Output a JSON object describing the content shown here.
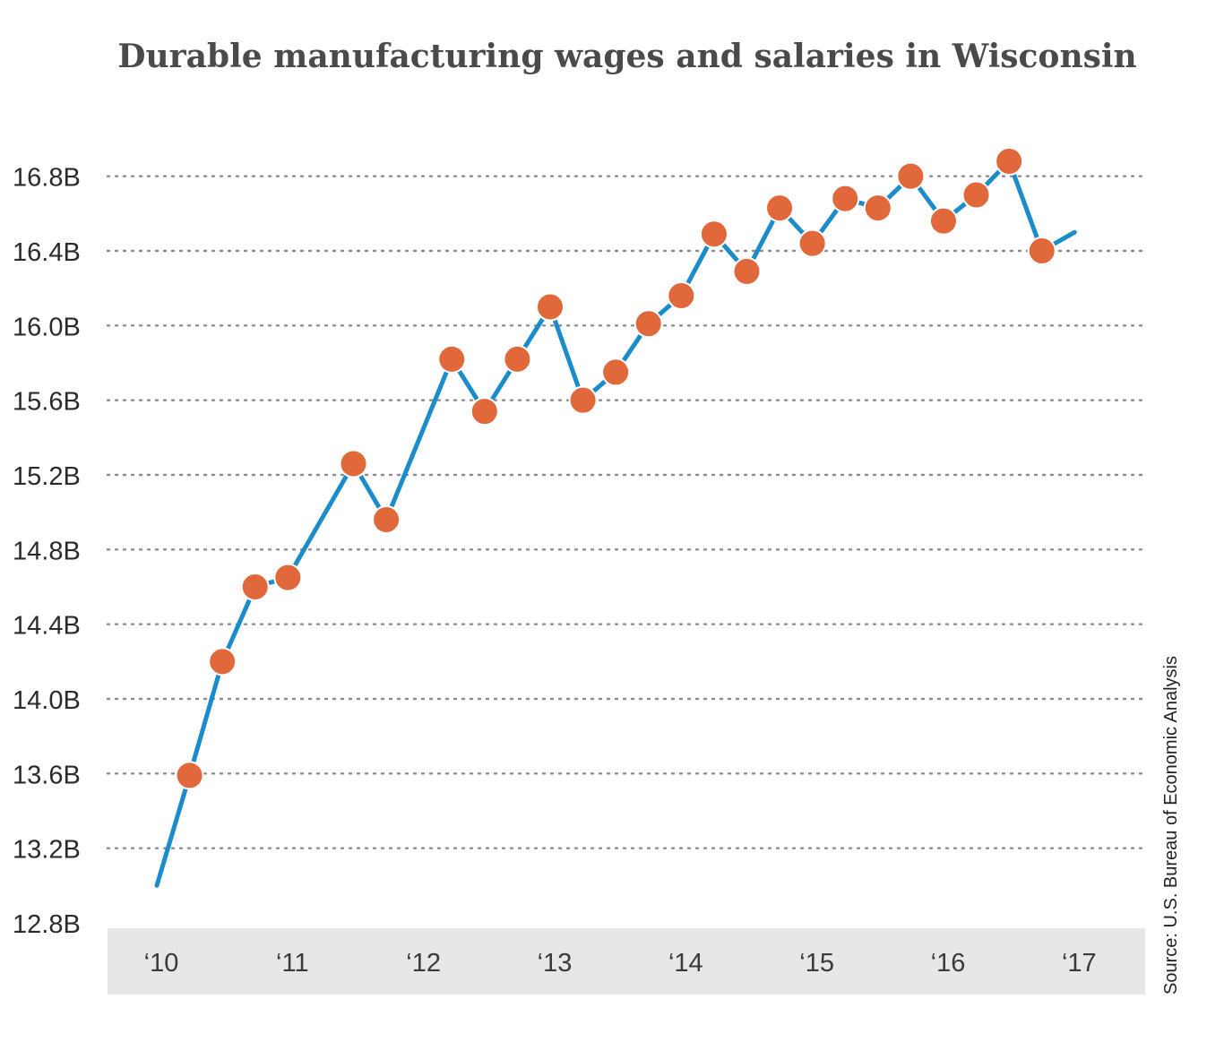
{
  "chart_data": {
    "type": "line",
    "title": "Durable manufacturing wages and salaries in Wisconsin",
    "source": "Source: U.S. Bureau of Economic Analysis",
    "xlabel": "",
    "ylabel": "",
    "ylim": [
      12.8,
      17.0
    ],
    "xlim": [
      2010,
      2017.3
    ],
    "grid": true,
    "y_ticks": [
      {
        "value": 12.8,
        "label": "12.8B"
      },
      {
        "value": 13.2,
        "label": "13.2B"
      },
      {
        "value": 13.6,
        "label": "13.6B"
      },
      {
        "value": 14.0,
        "label": "14.0B"
      },
      {
        "value": 14.4,
        "label": "14.4B"
      },
      {
        "value": 14.8,
        "label": "14.8B"
      },
      {
        "value": 15.2,
        "label": "15.2B"
      },
      {
        "value": 15.6,
        "label": "15.6B"
      },
      {
        "value": 16.0,
        "label": "16.0B"
      },
      {
        "value": 16.4,
        "label": "16.4B"
      },
      {
        "value": 16.8,
        "label": "16.8B"
      }
    ],
    "x_ticks": [
      {
        "value": 2010,
        "label": "‘10"
      },
      {
        "value": 2011,
        "label": "‘11"
      },
      {
        "value": 2012,
        "label": "‘12"
      },
      {
        "value": 2013,
        "label": "‘13"
      },
      {
        "value": 2014,
        "label": "‘14"
      },
      {
        "value": 2015,
        "label": "‘15"
      },
      {
        "value": 2016,
        "label": "‘16"
      },
      {
        "value": 2017,
        "label": "‘17"
      }
    ],
    "series": [
      {
        "line_color": "#1a8cc9",
        "marker_color": "#e0683a",
        "points": [
          {
            "x": 2010.0,
            "y": 13.0,
            "marker": false
          },
          {
            "x": 2010.25,
            "y": 13.59,
            "marker": true
          },
          {
            "x": 2010.5,
            "y": 14.2,
            "marker": true
          },
          {
            "x": 2010.75,
            "y": 14.6,
            "marker": true
          },
          {
            "x": 2011.0,
            "y": 14.65,
            "marker": true
          },
          {
            "x": 2011.5,
            "y": 15.26,
            "marker": true
          },
          {
            "x": 2011.75,
            "y": 14.96,
            "marker": true
          },
          {
            "x": 2012.25,
            "y": 15.82,
            "marker": true
          },
          {
            "x": 2012.5,
            "y": 15.54,
            "marker": true
          },
          {
            "x": 2012.75,
            "y": 15.82,
            "marker": true
          },
          {
            "x": 2013.0,
            "y": 16.1,
            "marker": true
          },
          {
            "x": 2013.25,
            "y": 15.6,
            "marker": true
          },
          {
            "x": 2013.5,
            "y": 15.75,
            "marker": true
          },
          {
            "x": 2013.75,
            "y": 16.01,
            "marker": true
          },
          {
            "x": 2014.0,
            "y": 16.16,
            "marker": true
          },
          {
            "x": 2014.25,
            "y": 16.49,
            "marker": true
          },
          {
            "x": 2014.5,
            "y": 16.29,
            "marker": true
          },
          {
            "x": 2014.75,
            "y": 16.63,
            "marker": true
          },
          {
            "x": 2015.0,
            "y": 16.44,
            "marker": true
          },
          {
            "x": 2015.25,
            "y": 16.68,
            "marker": true
          },
          {
            "x": 2015.5,
            "y": 16.63,
            "marker": true
          },
          {
            "x": 2015.75,
            "y": 16.8,
            "marker": true
          },
          {
            "x": 2016.0,
            "y": 16.56,
            "marker": true
          },
          {
            "x": 2016.25,
            "y": 16.7,
            "marker": true
          },
          {
            "x": 2016.5,
            "y": 16.88,
            "marker": true
          },
          {
            "x": 2016.75,
            "y": 16.4,
            "marker": true
          },
          {
            "x": 2017.0,
            "y": 16.5,
            "marker": false
          }
        ]
      }
    ],
    "background_band_color": "#e6e7e9",
    "grid_color": "#8c8c8c"
  }
}
